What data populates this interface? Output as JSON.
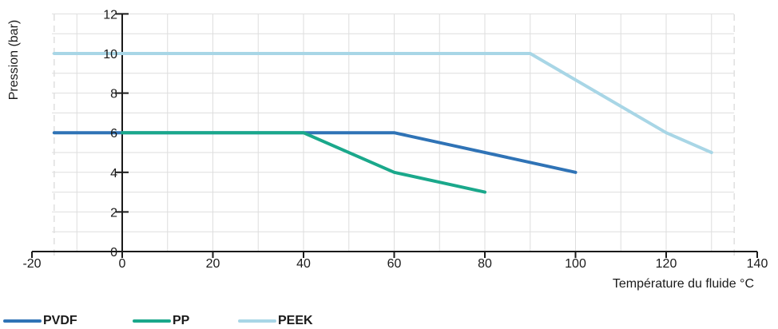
{
  "chart_data": {
    "type": "line",
    "xlabel": "Température du fluide °C",
    "ylabel": "Pression (bar)",
    "xlim": [
      -20,
      140
    ],
    "ylim": [
      0,
      12
    ],
    "x_ticks": [
      -20,
      0,
      20,
      40,
      60,
      80,
      100,
      120,
      140
    ],
    "y_ticks": [
      0,
      2,
      4,
      6,
      8,
      10,
      12
    ],
    "grid": true,
    "legend_position": "bottom-left",
    "series": [
      {
        "name": "PVDF",
        "color": "#2f73b6",
        "points": [
          [
            -15,
            6
          ],
          [
            60,
            6
          ],
          [
            100,
            4
          ]
        ]
      },
      {
        "name": "PP",
        "color": "#1aa88b",
        "points": [
          [
            0,
            6
          ],
          [
            40,
            6
          ],
          [
            60,
            4
          ],
          [
            80,
            3
          ]
        ]
      },
      {
        "name": "PEEK",
        "color": "#a8d6e6",
        "points": [
          [
            -15,
            10
          ],
          [
            90,
            10
          ],
          [
            120,
            6
          ],
          [
            130,
            5
          ]
        ]
      }
    ]
  }
}
